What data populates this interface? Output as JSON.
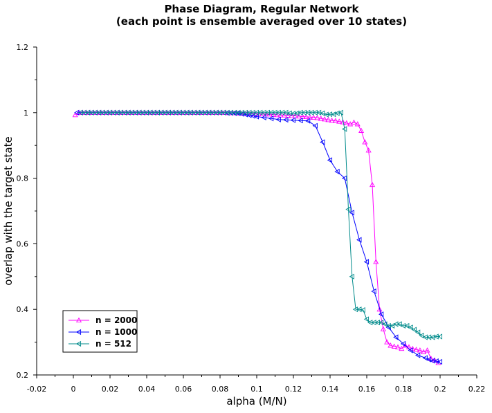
{
  "chart_data": {
    "type": "line",
    "title": "Phase Diagram, Regular Network",
    "subtitle": "(each point is ensemble averaged over 10 states)",
    "xlabel": "alpha (M/N)",
    "ylabel": "overlap with the target state",
    "xlim": [
      -0.02,
      0.22
    ],
    "ylim": [
      0.2,
      1.2
    ],
    "xticks": [
      "-0.02",
      "0",
      "0.02",
      "0.04",
      "0.06",
      "0.08",
      "0.1",
      "0.12",
      "0.14",
      "0.16",
      "0.18",
      "0.2",
      "0.22"
    ],
    "yticks": [
      "0.2",
      "0.4",
      "0.6",
      "0.8",
      "1",
      "1.2"
    ],
    "grid": false,
    "legend_position": "bottom-left",
    "series": [
      {
        "name": "n = 2000",
        "color": "#ff00ff",
        "marker": "triangle-up",
        "points": [
          [
            0.001,
            0.993
          ],
          [
            0.003,
            1.0
          ],
          [
            0.005,
            1.0
          ],
          [
            0.007,
            1.0
          ],
          [
            0.009,
            1.0
          ],
          [
            0.011,
            1.0
          ],
          [
            0.013,
            1.0
          ],
          [
            0.015,
            1.0
          ],
          [
            0.017,
            1.0
          ],
          [
            0.019,
            1.0
          ],
          [
            0.021,
            1.0
          ],
          [
            0.023,
            1.0
          ],
          [
            0.025,
            1.0
          ],
          [
            0.027,
            1.0
          ],
          [
            0.029,
            1.0
          ],
          [
            0.031,
            1.0
          ],
          [
            0.033,
            1.0
          ],
          [
            0.035,
            1.0
          ],
          [
            0.037,
            1.0
          ],
          [
            0.039,
            1.0
          ],
          [
            0.041,
            1.0
          ],
          [
            0.043,
            1.0
          ],
          [
            0.045,
            1.0
          ],
          [
            0.047,
            1.0
          ],
          [
            0.049,
            1.0
          ],
          [
            0.051,
            1.0
          ],
          [
            0.053,
            1.0
          ],
          [
            0.055,
            1.0
          ],
          [
            0.057,
            1.0
          ],
          [
            0.059,
            1.0
          ],
          [
            0.061,
            1.0
          ],
          [
            0.063,
            1.0
          ],
          [
            0.065,
            1.0
          ],
          [
            0.067,
            1.0
          ],
          [
            0.069,
            1.0
          ],
          [
            0.071,
            1.0
          ],
          [
            0.073,
            1.0
          ],
          [
            0.075,
            1.0
          ],
          [
            0.077,
            1.0
          ],
          [
            0.079,
            1.0
          ],
          [
            0.081,
            1.0
          ],
          [
            0.083,
            1.0
          ],
          [
            0.085,
            0.999
          ],
          [
            0.087,
            0.999
          ],
          [
            0.089,
            0.999
          ],
          [
            0.091,
            0.998
          ],
          [
            0.093,
            0.998
          ],
          [
            0.095,
            0.998
          ],
          [
            0.097,
            0.997
          ],
          [
            0.099,
            0.997
          ],
          [
            0.101,
            0.996
          ],
          [
            0.103,
            0.996
          ],
          [
            0.105,
            0.995
          ],
          [
            0.107,
            0.995
          ],
          [
            0.109,
            0.994
          ],
          [
            0.111,
            0.993
          ],
          [
            0.113,
            0.992
          ],
          [
            0.115,
            0.992
          ],
          [
            0.117,
            0.991
          ],
          [
            0.119,
            0.99
          ],
          [
            0.121,
            0.99
          ],
          [
            0.123,
            0.989
          ],
          [
            0.125,
            0.988
          ],
          [
            0.127,
            0.987
          ],
          [
            0.129,
            0.986
          ],
          [
            0.131,
            0.985
          ],
          [
            0.133,
            0.984
          ],
          [
            0.135,
            0.982
          ],
          [
            0.137,
            0.98
          ],
          [
            0.139,
            0.978
          ],
          [
            0.141,
            0.976
          ],
          [
            0.143,
            0.975
          ],
          [
            0.145,
            0.973
          ],
          [
            0.147,
            0.971
          ],
          [
            0.149,
            0.968
          ],
          [
            0.151,
            0.965
          ],
          [
            0.153,
            0.97
          ],
          [
            0.155,
            0.965
          ],
          [
            0.157,
            0.945
          ],
          [
            0.159,
            0.91
          ],
          [
            0.161,
            0.885
          ],
          [
            0.163,
            0.78
          ],
          [
            0.165,
            0.545
          ],
          [
            0.167,
            0.4
          ],
          [
            0.169,
            0.34
          ],
          [
            0.171,
            0.3
          ],
          [
            0.173,
            0.29
          ],
          [
            0.175,
            0.287
          ],
          [
            0.177,
            0.285
          ],
          [
            0.179,
            0.28
          ],
          [
            0.181,
            0.29
          ],
          [
            0.183,
            0.285
          ],
          [
            0.185,
            0.28
          ],
          [
            0.187,
            0.277
          ],
          [
            0.189,
            0.275
          ],
          [
            0.191,
            0.27
          ],
          [
            0.193,
            0.275
          ],
          [
            0.195,
            0.25
          ],
          [
            0.197,
            0.245
          ],
          [
            0.199,
            0.237
          ]
        ]
      },
      {
        "name": "n = 1000",
        "color": "#0000ff",
        "marker": "triangle-left",
        "points": [
          [
            0.002,
            1.0
          ],
          [
            0.004,
            1.0
          ],
          [
            0.006,
            1.0
          ],
          [
            0.008,
            1.0
          ],
          [
            0.01,
            1.0
          ],
          [
            0.012,
            1.0
          ],
          [
            0.014,
            1.0
          ],
          [
            0.016,
            1.0
          ],
          [
            0.018,
            1.0
          ],
          [
            0.02,
            1.0
          ],
          [
            0.022,
            1.0
          ],
          [
            0.024,
            1.0
          ],
          [
            0.026,
            1.0
          ],
          [
            0.028,
            1.0
          ],
          [
            0.03,
            1.0
          ],
          [
            0.032,
            1.0
          ],
          [
            0.034,
            1.0
          ],
          [
            0.036,
            1.0
          ],
          [
            0.038,
            1.0
          ],
          [
            0.04,
            1.0
          ],
          [
            0.042,
            1.0
          ],
          [
            0.044,
            1.0
          ],
          [
            0.046,
            1.0
          ],
          [
            0.048,
            1.0
          ],
          [
            0.05,
            1.0
          ],
          [
            0.052,
            1.0
          ],
          [
            0.054,
            1.0
          ],
          [
            0.056,
            1.0
          ],
          [
            0.058,
            1.0
          ],
          [
            0.06,
            1.0
          ],
          [
            0.062,
            1.0
          ],
          [
            0.064,
            1.0
          ],
          [
            0.066,
            1.0
          ],
          [
            0.068,
            1.0
          ],
          [
            0.07,
            1.0
          ],
          [
            0.072,
            1.0
          ],
          [
            0.074,
            1.0
          ],
          [
            0.076,
            1.0
          ],
          [
            0.078,
            1.0
          ],
          [
            0.08,
            1.0
          ],
          [
            0.082,
            1.0
          ],
          [
            0.084,
            0.999
          ],
          [
            0.086,
            0.999
          ],
          [
            0.088,
            0.998
          ],
          [
            0.09,
            0.998
          ],
          [
            0.092,
            0.996
          ],
          [
            0.094,
            0.994
          ],
          [
            0.096,
            0.992
          ],
          [
            0.098,
            0.99
          ],
          [
            0.1,
            0.988
          ],
          [
            0.104,
            0.985
          ],
          [
            0.108,
            0.982
          ],
          [
            0.112,
            0.979
          ],
          [
            0.116,
            0.978
          ],
          [
            0.12,
            0.977
          ],
          [
            0.124,
            0.976
          ],
          [
            0.128,
            0.975
          ],
          [
            0.132,
            0.96
          ],
          [
            0.136,
            0.91
          ],
          [
            0.14,
            0.855
          ],
          [
            0.144,
            0.82
          ],
          [
            0.148,
            0.8
          ],
          [
            0.152,
            0.695
          ],
          [
            0.156,
            0.612
          ],
          [
            0.16,
            0.545
          ],
          [
            0.164,
            0.455
          ],
          [
            0.168,
            0.385
          ],
          [
            0.172,
            0.345
          ],
          [
            0.176,
            0.315
          ],
          [
            0.18,
            0.295
          ],
          [
            0.184,
            0.275
          ],
          [
            0.188,
            0.26
          ],
          [
            0.192,
            0.252
          ],
          [
            0.194,
            0.247
          ],
          [
            0.196,
            0.243
          ],
          [
            0.198,
            0.242
          ],
          [
            0.2,
            0.24
          ]
        ]
      },
      {
        "name": "n = 512",
        "color": "#008b8b",
        "marker": "triangle-left",
        "points": [
          [
            0.004,
            1.0
          ],
          [
            0.006,
            1.0
          ],
          [
            0.008,
            1.0
          ],
          [
            0.01,
            1.0
          ],
          [
            0.012,
            1.0
          ],
          [
            0.014,
            1.0
          ],
          [
            0.016,
            1.0
          ],
          [
            0.018,
            1.0
          ],
          [
            0.02,
            1.0
          ],
          [
            0.022,
            1.0
          ],
          [
            0.024,
            1.0
          ],
          [
            0.026,
            1.0
          ],
          [
            0.028,
            1.0
          ],
          [
            0.03,
            1.0
          ],
          [
            0.032,
            1.0
          ],
          [
            0.034,
            1.0
          ],
          [
            0.036,
            1.0
          ],
          [
            0.038,
            1.0
          ],
          [
            0.04,
            1.0
          ],
          [
            0.042,
            1.0
          ],
          [
            0.044,
            1.0
          ],
          [
            0.046,
            1.0
          ],
          [
            0.048,
            1.0
          ],
          [
            0.05,
            1.0
          ],
          [
            0.052,
            1.0
          ],
          [
            0.054,
            1.0
          ],
          [
            0.056,
            1.0
          ],
          [
            0.058,
            1.0
          ],
          [
            0.06,
            1.0
          ],
          [
            0.062,
            1.0
          ],
          [
            0.064,
            1.0
          ],
          [
            0.066,
            1.0
          ],
          [
            0.068,
            1.0
          ],
          [
            0.07,
            1.0
          ],
          [
            0.072,
            1.0
          ],
          [
            0.074,
            1.0
          ],
          [
            0.076,
            1.0
          ],
          [
            0.078,
            1.0
          ],
          [
            0.08,
            1.0
          ],
          [
            0.082,
            1.0
          ],
          [
            0.084,
            1.0
          ],
          [
            0.086,
            1.0
          ],
          [
            0.088,
            1.0
          ],
          [
            0.09,
            1.0
          ],
          [
            0.092,
            1.0
          ],
          [
            0.094,
            1.0
          ],
          [
            0.096,
            1.0
          ],
          [
            0.098,
            1.0
          ],
          [
            0.1,
            1.0
          ],
          [
            0.102,
            1.0
          ],
          [
            0.104,
            1.0
          ],
          [
            0.106,
            1.0
          ],
          [
            0.108,
            1.0
          ],
          [
            0.11,
            1.0
          ],
          [
            0.112,
            1.0
          ],
          [
            0.114,
            1.0
          ],
          [
            0.116,
            1.0
          ],
          [
            0.118,
            0.998
          ],
          [
            0.12,
            0.997
          ],
          [
            0.122,
            0.998
          ],
          [
            0.124,
            1.0
          ],
          [
            0.126,
            1.0
          ],
          [
            0.128,
            1.0
          ],
          [
            0.13,
            1.0
          ],
          [
            0.132,
            1.0
          ],
          [
            0.134,
            1.0
          ],
          [
            0.136,
            0.998
          ],
          [
            0.138,
            0.994
          ],
          [
            0.14,
            0.995
          ],
          [
            0.142,
            0.995
          ],
          [
            0.144,
            0.998
          ],
          [
            0.146,
            1.0
          ],
          [
            0.148,
            0.95
          ],
          [
            0.15,
            0.705
          ],
          [
            0.152,
            0.5
          ],
          [
            0.154,
            0.4
          ],
          [
            0.156,
            0.4
          ],
          [
            0.158,
            0.398
          ],
          [
            0.16,
            0.37
          ],
          [
            0.162,
            0.36
          ],
          [
            0.164,
            0.36
          ],
          [
            0.166,
            0.36
          ],
          [
            0.168,
            0.36
          ],
          [
            0.17,
            0.355
          ],
          [
            0.172,
            0.35
          ],
          [
            0.174,
            0.35
          ],
          [
            0.176,
            0.355
          ],
          [
            0.178,
            0.355
          ],
          [
            0.18,
            0.35
          ],
          [
            0.182,
            0.35
          ],
          [
            0.184,
            0.345
          ],
          [
            0.186,
            0.338
          ],
          [
            0.188,
            0.33
          ],
          [
            0.19,
            0.32
          ],
          [
            0.192,
            0.315
          ],
          [
            0.194,
            0.315
          ],
          [
            0.196,
            0.315
          ],
          [
            0.198,
            0.317
          ],
          [
            0.2,
            0.317
          ]
        ]
      }
    ]
  }
}
